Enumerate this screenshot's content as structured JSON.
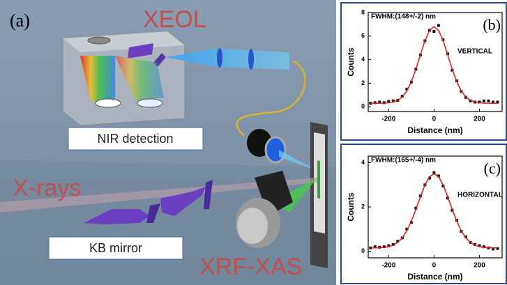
{
  "illustration": {
    "panel_label": "(a)",
    "title": "XEOL",
    "detection": "NIR detection",
    "beam": "X-rays",
    "optics": "KB mirror",
    "technique": "XRF-XAS"
  },
  "chart_data": [
    {
      "type": "scatter",
      "panel_label": "(b)",
      "annotations": [
        "FWHM:(148+/-2) nm",
        "VERTICAL"
      ],
      "x_label": "Distance (nm)",
      "y_label": "Counts",
      "xlim": [
        -290,
        300
      ],
      "ylim": [
        -0.4,
        8
      ],
      "xticks": [
        -200,
        0,
        200
      ],
      "yticks": [
        0,
        2,
        4,
        6,
        8
      ],
      "series": [
        {
          "kind": "points",
          "color": "#111111",
          "x": [
            -280,
            -260,
            -240,
            -220,
            -200,
            -180,
            -160,
            -140,
            -120,
            -100,
            -80,
            -60,
            -40,
            -20,
            0,
            20,
            40,
            60,
            80,
            100,
            120,
            140,
            160,
            180,
            200,
            220,
            240,
            260,
            280
          ],
          "values": [
            0.3,
            0.35,
            0.4,
            0.35,
            0.45,
            0.5,
            0.55,
            0.9,
            1.5,
            2.1,
            3.2,
            4.4,
            5.6,
            6.5,
            6.4,
            6.9,
            5.7,
            4.5,
            3.1,
            2.2,
            1.3,
            0.8,
            0.5,
            0.4,
            0.4,
            0.5,
            0.5,
            0.4,
            0.4
          ]
        },
        {
          "kind": "line",
          "color": "#e02020",
          "x": [
            -280,
            -260,
            -240,
            -220,
            -200,
            -180,
            -160,
            -140,
            -120,
            -100,
            -80,
            -60,
            -40,
            -20,
            0,
            20,
            40,
            60,
            80,
            100,
            120,
            140,
            160,
            180,
            200,
            220,
            240,
            260,
            280
          ],
          "values": [
            0.3,
            0.3,
            0.3,
            0.31,
            0.34,
            0.41,
            0.55,
            0.84,
            1.34,
            2.13,
            3.19,
            4.42,
            5.61,
            6.48,
            6.8,
            6.48,
            5.61,
            4.42,
            3.19,
            2.13,
            1.34,
            0.84,
            0.55,
            0.41,
            0.34,
            0.31,
            0.3,
            0.3,
            0.3
          ]
        }
      ]
    },
    {
      "type": "scatter",
      "panel_label": "(c)",
      "annotations": [
        "FWHM:(165+/-4) nm",
        "HORIZONTAL"
      ],
      "x_label": "Distance (nm)",
      "y_label": "Counts",
      "xlim": [
        -290,
        300
      ],
      "ylim": [
        -0.3,
        4.3
      ],
      "xticks": [
        -200,
        0,
        200
      ],
      "yticks": [
        0,
        2,
        4
      ],
      "series": [
        {
          "kind": "points",
          "color": "#111111",
          "x": [
            -280,
            -260,
            -240,
            -220,
            -200,
            -180,
            -160,
            -140,
            -120,
            -100,
            -80,
            -60,
            -40,
            -20,
            0,
            20,
            40,
            60,
            80,
            100,
            120,
            140,
            160,
            180,
            200,
            220,
            240,
            260,
            280
          ],
          "values": [
            0.15,
            0.2,
            0.18,
            0.2,
            0.25,
            0.3,
            0.45,
            0.6,
            1.0,
            1.3,
            1.95,
            2.5,
            3.0,
            3.3,
            3.55,
            3.4,
            2.95,
            2.4,
            1.85,
            1.4,
            0.9,
            0.65,
            0.4,
            0.3,
            0.25,
            0.2,
            0.15,
            0.1,
            0.12
          ]
        },
        {
          "kind": "line",
          "color": "#e02020",
          "x": [
            -280,
            -260,
            -240,
            -220,
            -200,
            -180,
            -160,
            -140,
            -120,
            -100,
            -80,
            -60,
            -40,
            -20,
            0,
            20,
            40,
            60,
            80,
            100,
            120,
            140,
            160,
            180,
            200,
            220,
            240,
            260,
            280
          ],
          "values": [
            0.15,
            0.15,
            0.16,
            0.17,
            0.21,
            0.27,
            0.4,
            0.6,
            0.92,
            1.36,
            1.89,
            2.47,
            2.99,
            3.37,
            3.5,
            3.37,
            2.99,
            2.47,
            1.89,
            1.36,
            0.92,
            0.6,
            0.4,
            0.27,
            0.21,
            0.17,
            0.16,
            0.15,
            0.15
          ]
        }
      ]
    }
  ]
}
